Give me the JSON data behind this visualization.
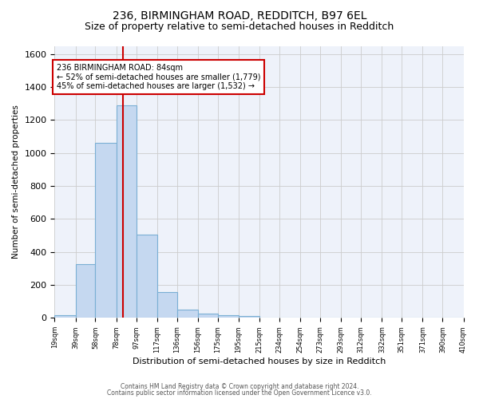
{
  "title_line1": "236, BIRMINGHAM ROAD, REDDITCH, B97 6EL",
  "title_line2": "Size of property relative to semi-detached houses in Redditch",
  "xlabel": "Distribution of semi-detached houses by size in Redditch",
  "ylabel": "Number of semi-detached properties",
  "footnote1": "Contains HM Land Registry data © Crown copyright and database right 2024.",
  "footnote2": "Contains public sector information licensed under the Open Government Licence v3.0.",
  "property_size": 84,
  "property_label": "236 BIRMINGHAM ROAD: 84sqm",
  "pct_smaller": 52,
  "pct_larger": 45,
  "n_smaller": 1779,
  "n_larger": 1532,
  "bin_edges": [
    19,
    39,
    58,
    78,
    97,
    117,
    136,
    156,
    175,
    195,
    215,
    234,
    254,
    273,
    293,
    312,
    332,
    351,
    371,
    390,
    410
  ],
  "bin_labels": [
    "19sqm",
    "39sqm",
    "58sqm",
    "78sqm",
    "97sqm",
    "117sqm",
    "136sqm",
    "156sqm",
    "175sqm",
    "195sqm",
    "215sqm",
    "234sqm",
    "254sqm",
    "273sqm",
    "293sqm",
    "312sqm",
    "332sqm",
    "351sqm",
    "371sqm",
    "390sqm",
    "410sqm"
  ],
  "counts": [
    15,
    325,
    1060,
    1290,
    505,
    155,
    50,
    25,
    15,
    10,
    0,
    0,
    0,
    0,
    0,
    0,
    0,
    0,
    0,
    0
  ],
  "bar_color": "#c5d8f0",
  "bar_edge_color": "#7aafd4",
  "vline_color": "#cc0000",
  "vline_x": 84,
  "ylim": [
    0,
    1650
  ],
  "yticks": [
    0,
    200,
    400,
    600,
    800,
    1000,
    1200,
    1400,
    1600
  ],
  "grid_color": "#cccccc",
  "bg_color": "#eef2fa",
  "box_color": "#cc0000",
  "title_fontsize": 10,
  "subtitle_fontsize": 9
}
